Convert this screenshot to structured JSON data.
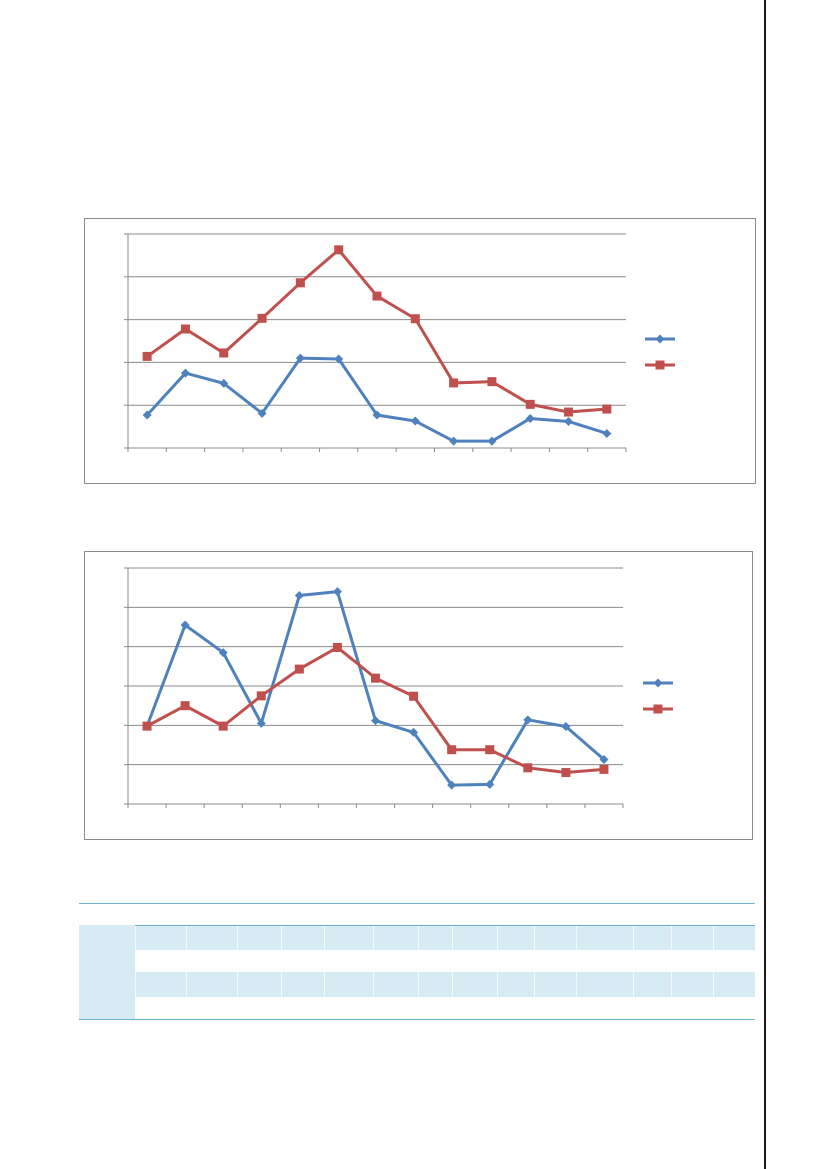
{
  "chart_data": [
    {
      "type": "line",
      "categories": [
        "",
        "",
        "",
        "",
        "",
        "",
        "",
        "",
        "",
        "",
        "",
        "",
        ""
      ],
      "ylim": [
        0,
        5
      ],
      "grid": true,
      "legend": "right",
      "series": [
        {
          "color": "#4f81bd",
          "marker": "diamond",
          "values": [
            0.77,
            1.75,
            1.51,
            0.81,
            2.1,
            2.08,
            0.77,
            0.63,
            0.16,
            0.16,
            0.69,
            0.62,
            0.34
          ]
        },
        {
          "color": "#c0504d",
          "marker": "square",
          "values": [
            2.14,
            2.78,
            2.22,
            3.03,
            3.86,
            4.63,
            3.55,
            3.02,
            1.52,
            1.55,
            1.02,
            0.84,
            0.91
          ]
        }
      ]
    },
    {
      "type": "line",
      "categories": [
        "",
        "",
        "",
        "",
        "",
        "",
        "",
        "",
        "",
        "",
        "",
        "",
        ""
      ],
      "ylim": [
        0,
        6
      ],
      "grid": true,
      "legend": "right",
      "series": [
        {
          "color": "#4f81bd",
          "marker": "diamond",
          "values": [
            1.98,
            4.55,
            3.85,
            2.05,
            5.3,
            5.4,
            2.12,
            1.82,
            0.48,
            0.5,
            2.14,
            1.97,
            1.13
          ]
        },
        {
          "color": "#c0504d",
          "marker": "square",
          "values": [
            1.98,
            2.5,
            1.98,
            2.75,
            3.43,
            3.98,
            3.2,
            2.74,
            1.38,
            1.38,
            0.92,
            0.8,
            0.88
          ]
        }
      ]
    }
  ],
  "table": {
    "rows": [
      "",
      "",
      "",
      ""
    ]
  }
}
